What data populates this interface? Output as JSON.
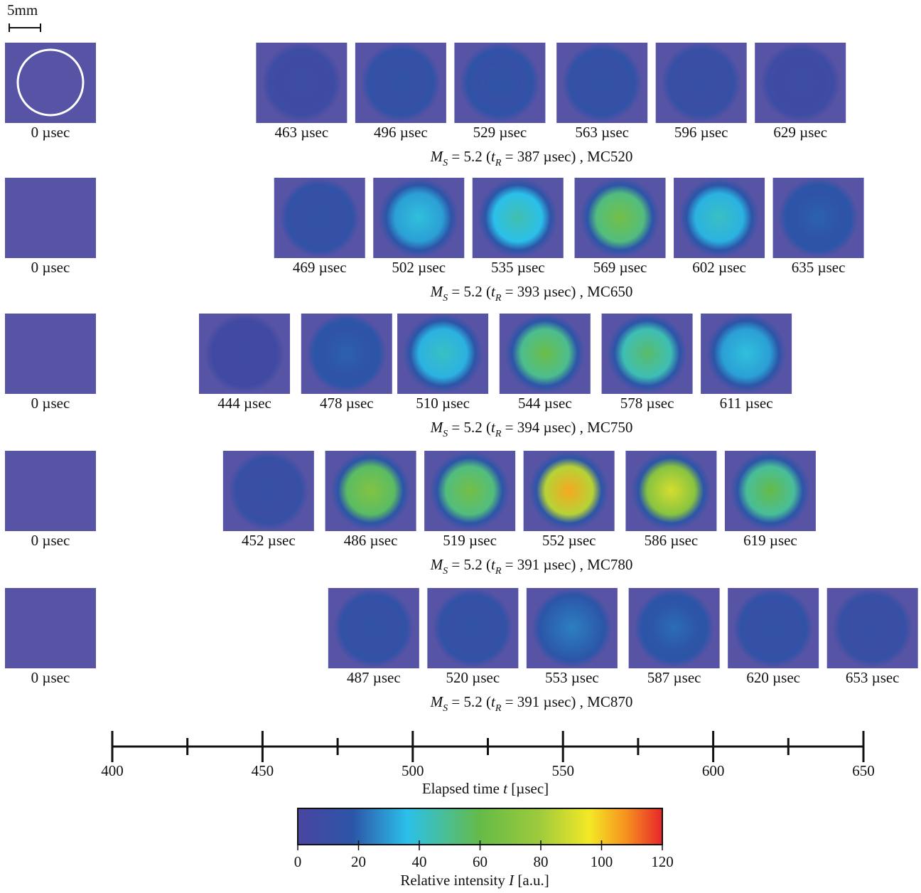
{
  "scale_bar": "5mm",
  "rows": [
    {
      "reference": "0 µsec",
      "frames": [
        {
          "time": 463,
          "label": "463 µsec",
          "peak": 8
        },
        {
          "time": 496,
          "label": "496 µsec",
          "peak": 15
        },
        {
          "time": 529,
          "label": "529 µsec",
          "peak": 16
        },
        {
          "time": 563,
          "label": "563 µsec",
          "peak": 15
        },
        {
          "time": 596,
          "label": "596 µsec",
          "peak": 12
        },
        {
          "time": 629,
          "label": "629 µsec",
          "peak": 8
        }
      ],
      "caption": [
        "M",
        "S",
        " = 5.2 (",
        "t",
        "R",
        " = 387 µsec)",
        "  ,  MC520"
      ]
    },
    {
      "reference": "0 µsec",
      "frames": [
        {
          "time": 469,
          "label": "469 µsec",
          "peak": 15
        },
        {
          "time": 502,
          "label": "502 µsec",
          "peak": 38
        },
        {
          "time": 535,
          "label": "535 µsec",
          "peak": 45
        },
        {
          "time": 569,
          "label": "569 µsec",
          "peak": 65
        },
        {
          "time": 602,
          "label": "602 µsec",
          "peak": 42
        },
        {
          "time": 635,
          "label": "635 µsec",
          "peak": 20
        }
      ],
      "caption": [
        "M",
        "S",
        " = 5.2 (",
        "t",
        "R",
        " = 393 µsec)",
        "  ,  MC650"
      ]
    },
    {
      "reference": "0 µsec",
      "frames": [
        {
          "time": 444,
          "label": "444 µsec",
          "peak": 6
        },
        {
          "time": 478,
          "label": "478 µsec",
          "peak": 20
        },
        {
          "time": 510,
          "label": "510 µsec",
          "peak": 42
        },
        {
          "time": 544,
          "label": "544 µsec",
          "peak": 62
        },
        {
          "time": 578,
          "label": "578 µsec",
          "peak": 55
        },
        {
          "time": 611,
          "label": "611 µsec",
          "peak": 38
        }
      ],
      "caption": [
        "M",
        "S",
        " = 5.2 (",
        "t",
        "R",
        " = 394 µsec)",
        "  ,  MC750"
      ]
    },
    {
      "reference": "0 µsec",
      "frames": [
        {
          "time": 452,
          "label": "452 µsec",
          "peak": 12
        },
        {
          "time": 486,
          "label": "486 µsec",
          "peak": 70
        },
        {
          "time": 519,
          "label": "519 µsec",
          "peak": 65
        },
        {
          "time": 552,
          "label": "552 µsec",
          "peak": 105
        },
        {
          "time": 586,
          "label": "586 µsec",
          "peak": 90
        },
        {
          "time": 619,
          "label": "619 µsec",
          "peak": 60
        }
      ],
      "caption": [
        "M",
        "S",
        " = 5.2 (",
        "t",
        "R",
        " = 391 µsec)",
        "  ,  MC780"
      ]
    },
    {
      "reference": "0 µsec",
      "frames": [
        {
          "time": 487,
          "label": "487 µsec",
          "peak": 15
        },
        {
          "time": 520,
          "label": "520 µsec",
          "peak": 15
        },
        {
          "time": 553,
          "label": "553 µsec",
          "peak": 25
        },
        {
          "time": 587,
          "label": "587 µsec",
          "peak": 22
        },
        {
          "time": 620,
          "label": "620 µsec",
          "peak": 15
        },
        {
          "time": 653,
          "label": "653 µsec",
          "peak": 12
        }
      ],
      "caption": [
        "M",
        "S",
        " = 5.2 (",
        "t",
        "R",
        " = 391 µsec)",
        "  ,  MC870"
      ]
    }
  ],
  "time_axis": {
    "xlim": [
      400,
      650
    ],
    "xticks": [
      400,
      450,
      500,
      550,
      600,
      650
    ],
    "minor_ticks": [
      425,
      475,
      525,
      575,
      625
    ],
    "title": [
      "Elapsed time ",
      "t",
      " [µsec]"
    ]
  },
  "colorbar": {
    "xlim": [
      0,
      120
    ],
    "xticks": [
      0,
      20,
      40,
      60,
      80,
      100,
      120
    ],
    "title": [
      "Relative intensity  ",
      "I",
      "  [a.u.]"
    ]
  }
}
